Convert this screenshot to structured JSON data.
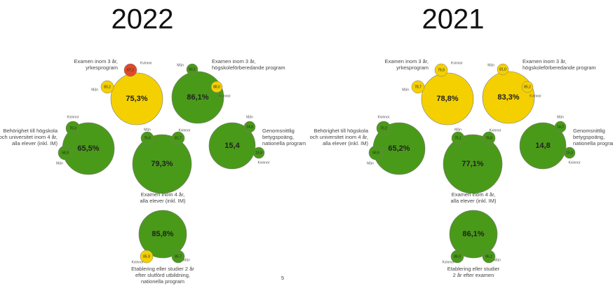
{
  "panels": [
    {
      "year": "2022",
      "items": [
        {
          "label": [
            "Examen inom 3 år,",
            "yrkesprogram"
          ],
          "value": "75,3%",
          "color": "#f5d000",
          "small": [
            {
              "name": "Kvinnor",
              "value": "67,2",
              "color": "#e04a2a"
            },
            {
              "name": "Män",
              "value": "83,2",
              "color": "#f5d000"
            }
          ]
        },
        {
          "label": [
            "Examen inom 3 år,",
            "högskoleförberedande program"
          ],
          "value": "86,1%",
          "color": "#4a9a1a",
          "small": [
            {
              "name": "Män",
              "value": "83,1",
              "color": "#4a9a1a"
            },
            {
              "name": "Kvinnor",
              "value": "88,0",
              "color": "#f5d000"
            }
          ]
        },
        {
          "label": [
            "Behörighet till högskola",
            "och universitet inom 4 år,",
            "alla elever (inkl. IM)"
          ],
          "value": "65,5%",
          "color": "#4a9a1a",
          "small": [
            {
              "name": "Kvinnor",
              "value": "70,3",
              "color": "#4a9a1a"
            },
            {
              "name": "Män",
              "value": "58,8",
              "color": "#4a9a1a"
            }
          ]
        },
        {
          "label": [
            "Examen inom 4 år,",
            "alla elever (inkl. IM)"
          ],
          "value": "79,3%",
          "color": "#4a9a1a",
          "small": [
            {
              "name": "Män",
              "value": "76,6",
              "color": "#4a9a1a"
            },
            {
              "name": "Kvinnor",
              "value": "81,7",
              "color": "#4a9a1a"
            }
          ]
        },
        {
          "label": [
            "Genomsnittlig",
            "betygspoäng,",
            "nationella program"
          ],
          "value": "15,4",
          "color": "#4a9a1a",
          "small": [
            {
              "name": "Män",
              "value": "14,8",
              "color": "#4a9a1a"
            },
            {
              "name": "Kvinnor",
              "value": "15,9",
              "color": "#4a9a1a"
            }
          ]
        },
        {
          "label": [
            "Etablering eller studier 2 år",
            "efter slutförd utbildning,",
            "nationella program"
          ],
          "value": "85,8%",
          "color": "#4a9a1a",
          "small": [
            {
              "name": "Kvinnor",
              "value": "85,9",
              "color": "#f5d000"
            },
            {
              "name": "Män",
              "value": "85,7",
              "color": "#4a9a1a"
            }
          ]
        }
      ]
    },
    {
      "year": "2021",
      "items": [
        {
          "label": [
            "Examen inom 3 år,",
            "yrkesprogram"
          ],
          "value": "78,8%",
          "color": "#f5d000",
          "small": [
            {
              "name": "Kvinnor",
              "value": "79,9",
              "color": "#f5d000"
            },
            {
              "name": "Män",
              "value": "78,7",
              "color": "#f5d000"
            }
          ]
        },
        {
          "label": [
            "Examen inom 3 år,",
            "högskoleförberedande program"
          ],
          "value": "83,3%",
          "color": "#f5d000",
          "small": [
            {
              "name": "Män",
              "value": "81,0",
              "color": "#f5d000"
            },
            {
              "name": "Kvinnor",
              "value": "85,2",
              "color": "#f5d000"
            }
          ]
        },
        {
          "label": [
            "Behörighet till högskola",
            "och universitet inom 4 år,",
            "alla elever (inkl. IM)"
          ],
          "value": "65,2%",
          "color": "#4a9a1a",
          "small": [
            {
              "name": "Kvinnor",
              "value": "70,2",
              "color": "#4a9a1a"
            },
            {
              "name": "Män",
              "value": "59,9",
              "color": "#4a9a1a"
            }
          ]
        },
        {
          "label": [
            "Examen inom 4 år,",
            "alla elever (inkl. IM)"
          ],
          "value": "77,1%",
          "color": "#4a9a1a",
          "small": [
            {
              "name": "Män",
              "value": "75,1",
              "color": "#4a9a1a"
            },
            {
              "name": "Kvinnor",
              "value": "78,8",
              "color": "#4a9a1a"
            }
          ]
        },
        {
          "label": [
            "Genomsnittlig",
            "betygspoäng,",
            "nationella program"
          ],
          "value": "14,8",
          "color": "#4a9a1a",
          "small": [
            {
              "name": "Män",
              "value": "14,2",
              "color": "#4a9a1a"
            },
            {
              "name": "Kvinnor",
              "value": "15,3",
              "color": "#4a9a1a"
            }
          ]
        },
        {
          "label": [
            "Etablering eller studier",
            "2 år efter examen"
          ],
          "value": "86,1%",
          "color": "#4a9a1a",
          "small": [
            {
              "name": "Kvinnor",
              "value": "86,0",
              "color": "#4a9a1a"
            },
            {
              "name": "Män",
              "value": "86,2",
              "color": "#4a9a1a"
            }
          ]
        }
      ]
    }
  ],
  "page_number": "5"
}
